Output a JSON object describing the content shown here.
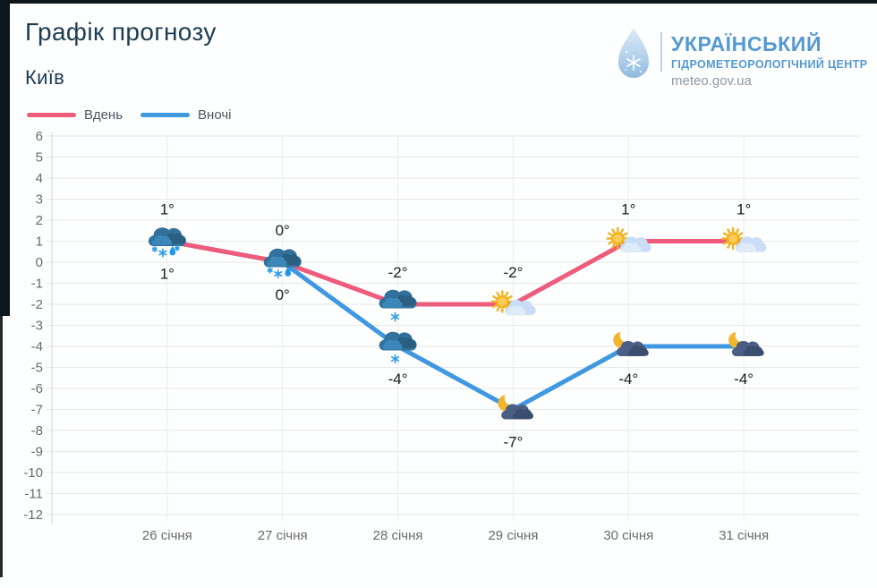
{
  "page": {
    "title": "Графік прогнозу",
    "subtitle": "Київ"
  },
  "logo": {
    "org_line1": "УКРАЇНСЬКИЙ",
    "org_line2": "ГІДРОМЕТЕОРОЛОГІЧНИЙ ЦЕНТР",
    "site": "meteo.gov.ua",
    "brand_blue": "#5598d2"
  },
  "chart_data": {
    "type": "line",
    "title": "Графік прогнозу — Київ",
    "categories": [
      "26 січня",
      "27 січня",
      "28 січня",
      "29 січня",
      "30 січня",
      "31 січня"
    ],
    "series": [
      {
        "name": "Вдень",
        "color": "#ee5c7c",
        "values": [
          1,
          0,
          -2,
          -2,
          1,
          1
        ],
        "labels": [
          "1°",
          "0°",
          "-2°",
          "-2°",
          "1°",
          "1°"
        ],
        "label_position": "above",
        "icons": [
          "cloud-sleet",
          "cloud-sleet",
          "cloud-snow",
          "sun-cloud",
          "sun-cloud",
          "sun-cloud"
        ]
      },
      {
        "name": "Вночі",
        "color": "#3f98e0",
        "values": [
          1,
          0,
          -4,
          -7,
          -4,
          -4
        ],
        "labels": [
          "1°",
          "0°",
          "-4°",
          "-7°",
          "-4°",
          "-4°"
        ],
        "label_position": "below",
        "icons": [
          null,
          null,
          "cloud-snow",
          "moon-cloud",
          "moon-cloud",
          "moon-cloud"
        ]
      }
    ],
    "xlabel": "",
    "ylabel": "",
    "ylim": [
      -12,
      6
    ],
    "ytick_step": 1,
    "grid": true,
    "legend_position": "top-left"
  }
}
